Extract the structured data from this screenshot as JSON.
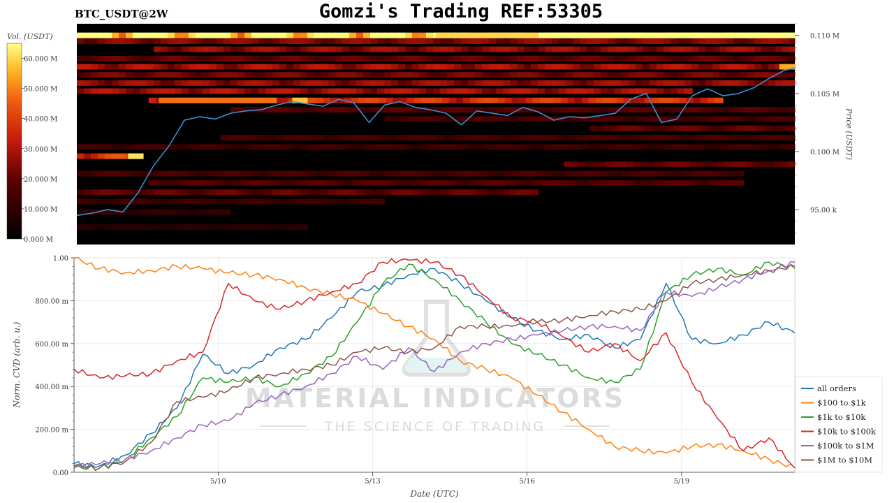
{
  "header": {
    "symbol_label": "BTC_USDT@2W",
    "title": "Gomzi's Trading REF:53305"
  },
  "chart_data": [
    {
      "type": "heatmap",
      "title": "",
      "colorbar_label": "Vol. (USDT)",
      "colorbar_ticks": [
        "0.000 M",
        "10.000 M",
        "20.000 M",
        "30.000 M",
        "40.000 M",
        "50.000 M",
        "60.000 M"
      ],
      "colorbar_range": [
        0,
        65
      ],
      "ylabel": "Price (USDT)",
      "ylim": [
        92000,
        111000
      ],
      "y_ticks": [
        {
          "value": 95000,
          "label": "95.00 k"
        },
        {
          "value": 100000,
          "label": "0.100 M"
        },
        {
          "value": 105000,
          "label": "0.105 M"
        },
        {
          "value": 110000,
          "label": "0.110 M"
        }
      ],
      "xlim": [
        0,
        14
      ],
      "price_series": {
        "name": "",
        "x": [
          0,
          0.3,
          0.6,
          0.9,
          1.2,
          1.5,
          1.8,
          2.1,
          2.4,
          2.7,
          3.0,
          3.3,
          3.6,
          3.9,
          4.2,
          4.5,
          4.8,
          5.1,
          5.4,
          5.7,
          6.0,
          6.3,
          6.6,
          6.9,
          7.2,
          7.5,
          7.8,
          8.1,
          8.4,
          8.7,
          9.0,
          9.3,
          9.6,
          9.9,
          10.2,
          10.5,
          10.8,
          11.1,
          11.4,
          11.7,
          12.0,
          12.3,
          12.6,
          12.9,
          13.2,
          13.5,
          13.8,
          14.0
        ],
        "y": [
          94500,
          94700,
          95000,
          94800,
          96500,
          98800,
          100500,
          102700,
          103000,
          102800,
          103300,
          103500,
          103600,
          104000,
          104300,
          104100,
          103900,
          104500,
          104200,
          102500,
          104000,
          104300,
          103800,
          103600,
          103300,
          102300,
          103500,
          103300,
          103100,
          103800,
          103400,
          102700,
          103000,
          102900,
          103100,
          103300,
          104500,
          105000,
          102500,
          102800,
          104800,
          105400,
          104800,
          105000,
          105500,
          106300,
          107000,
          107200
        ]
      },
      "levels": [
        {
          "price": 110000,
          "x_start": 0,
          "x_end": 14,
          "intensity": 60
        },
        {
          "price": 109500,
          "x_start": 0,
          "x_end": 14,
          "intensity": 22
        },
        {
          "price": 108800,
          "x_start": 1.5,
          "x_end": 14,
          "intensity": 24
        },
        {
          "price": 108000,
          "x_start": 0,
          "x_end": 14,
          "intensity": 18
        },
        {
          "price": 107300,
          "x_start": 0,
          "x_end": 14,
          "intensity": 26
        },
        {
          "price": 106600,
          "x_start": 0,
          "x_end": 14,
          "intensity": 20
        },
        {
          "price": 105900,
          "x_start": 0,
          "x_end": 14,
          "intensity": 24
        },
        {
          "price": 105200,
          "x_start": 0,
          "x_end": 12,
          "intensity": 26
        },
        {
          "price": 104400,
          "x_start": 1.4,
          "x_end": 12.6,
          "intensity": 34
        },
        {
          "price": 103600,
          "x_start": 3,
          "x_end": 14,
          "intensity": 16
        },
        {
          "price": 102800,
          "x_start": 6,
          "x_end": 14,
          "intensity": 14
        },
        {
          "price": 102000,
          "x_start": 10,
          "x_end": 14,
          "intensity": 18
        },
        {
          "price": 101200,
          "x_start": 2.8,
          "x_end": 14,
          "intensity": 14
        },
        {
          "price": 100400,
          "x_start": 0,
          "x_end": 14,
          "intensity": 12
        },
        {
          "price": 99600,
          "x_start": 0,
          "x_end": 1.3,
          "intensity": 36
        },
        {
          "price": 98900,
          "x_start": 9.5,
          "x_end": 14,
          "intensity": 18
        },
        {
          "price": 98100,
          "x_start": 0,
          "x_end": 13,
          "intensity": 14
        },
        {
          "price": 97300,
          "x_start": 1.4,
          "x_end": 13,
          "intensity": 16
        },
        {
          "price": 96500,
          "x_start": 0,
          "x_end": 9,
          "intensity": 18
        },
        {
          "price": 95700,
          "x_start": 0,
          "x_end": 6,
          "intensity": 12
        },
        {
          "price": 94800,
          "x_start": 0,
          "x_end": 3,
          "intensity": 10
        },
        {
          "price": 93500,
          "x_start": 0,
          "x_end": 4.5,
          "intensity": 8
        }
      ],
      "hot_spots": [
        {
          "price": 110000,
          "x_start": 9.0,
          "x_end": 11.5,
          "intensity": 65
        },
        {
          "price": 110000,
          "x_start": 7.0,
          "x_end": 9.0,
          "intensity": 60
        },
        {
          "price": 110000,
          "x_start": 11.5,
          "x_end": 14,
          "intensity": 68
        },
        {
          "price": 104400,
          "x_start": 1.6,
          "x_end": 3.9,
          "intensity": 48
        },
        {
          "price": 104400,
          "x_start": 4.2,
          "x_end": 4.5,
          "intensity": 58
        },
        {
          "price": 99600,
          "x_start": 1.0,
          "x_end": 1.3,
          "intensity": 62
        },
        {
          "price": 107300,
          "x_start": 13.7,
          "x_end": 14,
          "intensity": 55
        }
      ]
    },
    {
      "type": "line",
      "title": "",
      "xlabel": "Date (UTC)",
      "ylabel": "Norm. CVD (arb. u.)",
      "ylim": [
        0,
        1
      ],
      "xlim": [
        0,
        14
      ],
      "y_ticks": [
        {
          "value": 0,
          "label": "0.00"
        },
        {
          "value": 0.2,
          "label": "200.00 m"
        },
        {
          "value": 0.4,
          "label": "400.00 m"
        },
        {
          "value": 0.6,
          "label": "600.00 m"
        },
        {
          "value": 0.8,
          "label": "800.00 m"
        },
        {
          "value": 1,
          "label": "1.00"
        }
      ],
      "x_ticks": [
        {
          "value": 2.8,
          "label": "5/10"
        },
        {
          "value": 5.8,
          "label": "5/13"
        },
        {
          "value": 8.8,
          "label": "5/16"
        },
        {
          "value": 11.8,
          "label": "5/19"
        }
      ],
      "grid": true,
      "legend_position": "bottom-right",
      "watermark": {
        "text": "MATERIAL INDICATORS",
        "subtext": "THE SCIENCE OF TRADING"
      },
      "x": [
        0,
        0.5,
        1,
        1.5,
        2,
        2.5,
        3,
        3.5,
        4,
        4.5,
        5,
        5.5,
        6,
        6.5,
        7,
        7.5,
        8,
        8.5,
        9,
        9.5,
        10,
        10.5,
        11,
        11.5,
        12,
        12.5,
        13,
        13.5,
        14
      ],
      "series": [
        {
          "name": "all orders",
          "color": "#1f77b4",
          "values": [
            0.04,
            0.03,
            0.08,
            0.18,
            0.3,
            0.55,
            0.46,
            0.5,
            0.58,
            0.62,
            0.72,
            0.84,
            0.87,
            0.92,
            0.95,
            0.88,
            0.8,
            0.72,
            0.66,
            0.62,
            0.64,
            0.58,
            0.62,
            0.88,
            0.62,
            0.6,
            0.64,
            0.7,
            0.65
          ]
        },
        {
          "name": "$100 to $1k",
          "color": "#ff7f0e",
          "values": [
            1.0,
            0.95,
            0.93,
            0.94,
            0.96,
            0.95,
            0.93,
            0.92,
            0.9,
            0.86,
            0.83,
            0.8,
            0.74,
            0.68,
            0.62,
            0.52,
            0.48,
            0.44,
            0.36,
            0.28,
            0.2,
            0.12,
            0.1,
            0.09,
            0.12,
            0.13,
            0.1,
            0.06,
            0.02
          ]
        },
        {
          "name": "$1k to $10k",
          "color": "#2ca02c",
          "values": [
            0.02,
            0.02,
            0.06,
            0.16,
            0.26,
            0.44,
            0.42,
            0.44,
            0.4,
            0.46,
            0.54,
            0.7,
            0.88,
            0.97,
            0.9,
            0.8,
            0.7,
            0.6,
            0.55,
            0.5,
            0.44,
            0.42,
            0.48,
            0.84,
            0.92,
            0.95,
            0.92,
            0.98,
            0.95
          ]
        },
        {
          "name": "$10k to $100k",
          "color": "#d62728",
          "values": [
            0.48,
            0.44,
            0.45,
            0.46,
            0.52,
            0.56,
            0.88,
            0.8,
            0.76,
            0.8,
            0.84,
            0.88,
            0.98,
            0.99,
            0.98,
            0.92,
            0.82,
            0.72,
            0.7,
            0.63,
            0.56,
            0.6,
            0.52,
            0.65,
            0.42,
            0.25,
            0.1,
            0.16,
            0.02
          ]
        },
        {
          "name": "$100k to $1M",
          "color": "#9467bd",
          "values": [
            0.03,
            0.04,
            0.06,
            0.1,
            0.16,
            0.22,
            0.24,
            0.32,
            0.36,
            0.4,
            0.46,
            0.54,
            0.48,
            0.58,
            0.47,
            0.56,
            0.6,
            0.62,
            0.64,
            0.66,
            0.68,
            0.68,
            0.66,
            0.84,
            0.82,
            0.86,
            0.9,
            0.94,
            0.98
          ]
        },
        {
          "name": "$1M to $10M",
          "color": "#8c564b",
          "values": [
            0.03,
            0.02,
            0.05,
            0.14,
            0.33,
            0.35,
            0.38,
            0.44,
            0.46,
            0.48,
            0.5,
            0.56,
            0.58,
            0.56,
            0.58,
            0.68,
            0.68,
            0.68,
            0.7,
            0.71,
            0.73,
            0.75,
            0.76,
            0.8,
            0.88,
            0.9,
            0.92,
            0.94,
            0.96
          ]
        }
      ]
    }
  ]
}
